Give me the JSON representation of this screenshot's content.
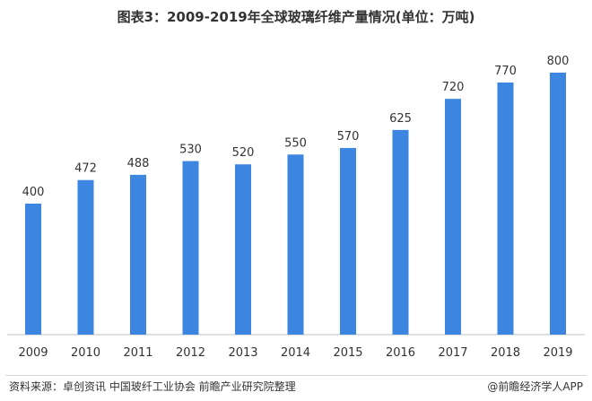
{
  "title": "图表3：2009-2019年全球玻璃纤维产量情况(单位：万吨)",
  "chart_data": {
    "type": "bar",
    "categories": [
      "2009",
      "2010",
      "2011",
      "2012",
      "2013",
      "2014",
      "2015",
      "2016",
      "2017",
      "2018",
      "2019"
    ],
    "values": [
      400,
      472,
      488,
      530,
      520,
      550,
      570,
      625,
      720,
      770,
      800
    ],
    "xlabel": "",
    "ylabel": "",
    "ylim": [
      0,
      850
    ],
    "grid": false,
    "bar_color": "#3c85e0"
  },
  "footer": {
    "source": "资料来源：卓创资讯 中国玻纤工业协会 前瞻产业研究院整理",
    "brand": "@前瞻经济学人APP"
  }
}
